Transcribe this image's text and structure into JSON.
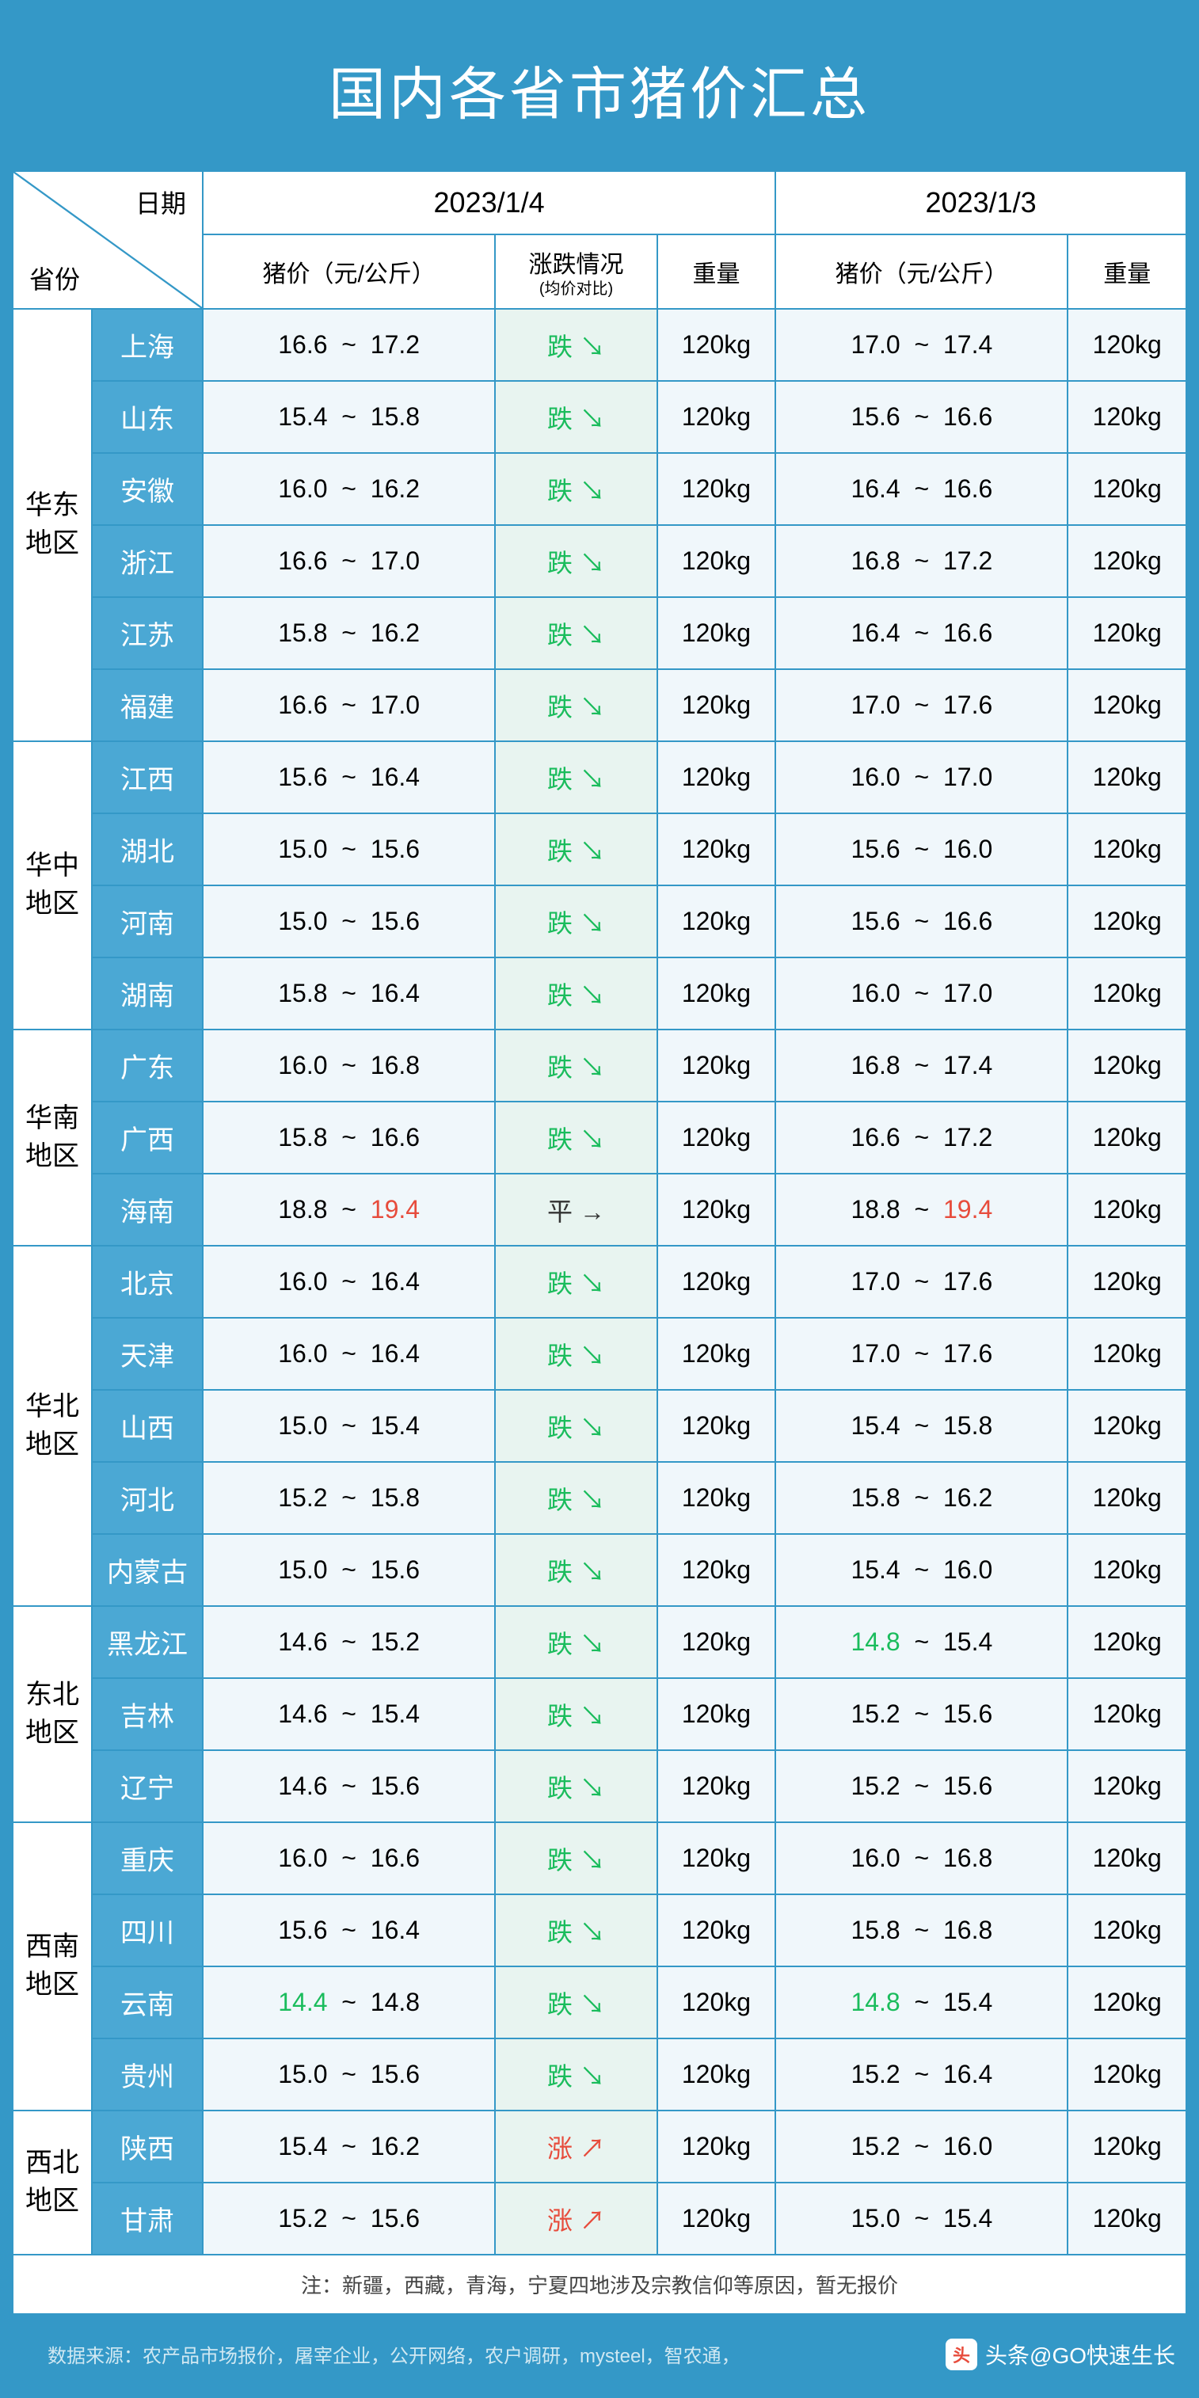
{
  "title": "国内各省市猪价汇总",
  "header": {
    "date_label": "日期",
    "province_label": "省份",
    "date1": "2023/1/4",
    "date2": "2023/1/3",
    "price_label": "猪价（元/公斤）",
    "trend_label": "涨跌情况",
    "trend_sub": "(均价对比)",
    "weight_label": "重量"
  },
  "colors": {
    "bg_main": "#3498c7",
    "province_bg": "#4ba8d4",
    "price_bg": "#f0f7fb",
    "trend_bg": "#e8f4f0",
    "down": "#1abc5c",
    "up": "#e74c3c",
    "red": "#e74c3c",
    "green": "#1abc5c"
  },
  "regions": [
    {
      "name": "华东地区",
      "provinces": [
        {
          "name": "上海",
          "p1l": "16.6",
          "p1h": "17.2",
          "trend": "down",
          "w1": "120kg",
          "p2l": "17.0",
          "p2h": "17.4",
          "w2": "120kg"
        },
        {
          "name": "山东",
          "p1l": "15.4",
          "p1h": "15.8",
          "trend": "down",
          "w1": "120kg",
          "p2l": "15.6",
          "p2h": "16.6",
          "w2": "120kg"
        },
        {
          "name": "安徽",
          "p1l": "16.0",
          "p1h": "16.2",
          "trend": "down",
          "w1": "120kg",
          "p2l": "16.4",
          "p2h": "16.6",
          "w2": "120kg"
        },
        {
          "name": "浙江",
          "p1l": "16.6",
          "p1h": "17.0",
          "trend": "down",
          "w1": "120kg",
          "p2l": "16.8",
          "p2h": "17.2",
          "w2": "120kg"
        },
        {
          "name": "江苏",
          "p1l": "15.8",
          "p1h": "16.2",
          "trend": "down",
          "w1": "120kg",
          "p2l": "16.4",
          "p2h": "16.6",
          "w2": "120kg"
        },
        {
          "name": "福建",
          "p1l": "16.6",
          "p1h": "17.0",
          "trend": "down",
          "w1": "120kg",
          "p2l": "17.0",
          "p2h": "17.6",
          "w2": "120kg"
        }
      ]
    },
    {
      "name": "华中地区",
      "provinces": [
        {
          "name": "江西",
          "p1l": "15.6",
          "p1h": "16.4",
          "trend": "down",
          "w1": "120kg",
          "p2l": "16.0",
          "p2h": "17.0",
          "w2": "120kg"
        },
        {
          "name": "湖北",
          "p1l": "15.0",
          "p1h": "15.6",
          "trend": "down",
          "w1": "120kg",
          "p2l": "15.6",
          "p2h": "16.0",
          "w2": "120kg"
        },
        {
          "name": "河南",
          "p1l": "15.0",
          "p1h": "15.6",
          "trend": "down",
          "w1": "120kg",
          "p2l": "15.6",
          "p2h": "16.6",
          "w2": "120kg"
        },
        {
          "name": "湖南",
          "p1l": "15.8",
          "p1h": "16.4",
          "trend": "down",
          "w1": "120kg",
          "p2l": "16.0",
          "p2h": "17.0",
          "w2": "120kg"
        }
      ]
    },
    {
      "name": "华南地区",
      "provinces": [
        {
          "name": "广东",
          "p1l": "16.0",
          "p1h": "16.8",
          "trend": "down",
          "w1": "120kg",
          "p2l": "16.8",
          "p2h": "17.4",
          "w2": "120kg"
        },
        {
          "name": "广西",
          "p1l": "15.8",
          "p1h": "16.6",
          "trend": "down",
          "w1": "120kg",
          "p2l": "16.6",
          "p2h": "17.2",
          "w2": "120kg"
        },
        {
          "name": "海南",
          "p1l": "18.8",
          "p1h": "19.4",
          "p1h_color": "red",
          "trend": "flat",
          "w1": "120kg",
          "p2l": "18.8",
          "p2h": "19.4",
          "p2h_color": "red",
          "w2": "120kg"
        }
      ]
    },
    {
      "name": "华北地区",
      "provinces": [
        {
          "name": "北京",
          "p1l": "16.0",
          "p1h": "16.4",
          "trend": "down",
          "w1": "120kg",
          "p2l": "17.0",
          "p2h": "17.6",
          "w2": "120kg"
        },
        {
          "name": "天津",
          "p1l": "16.0",
          "p1h": "16.4",
          "trend": "down",
          "w1": "120kg",
          "p2l": "17.0",
          "p2h": "17.6",
          "w2": "120kg"
        },
        {
          "name": "山西",
          "p1l": "15.0",
          "p1h": "15.4",
          "trend": "down",
          "w1": "120kg",
          "p2l": "15.4",
          "p2h": "15.8",
          "w2": "120kg"
        },
        {
          "name": "河北",
          "p1l": "15.2",
          "p1h": "15.8",
          "trend": "down",
          "w1": "120kg",
          "p2l": "15.8",
          "p2h": "16.2",
          "w2": "120kg"
        },
        {
          "name": "内蒙古",
          "p1l": "15.0",
          "p1h": "15.6",
          "trend": "down",
          "w1": "120kg",
          "p2l": "15.4",
          "p2h": "16.0",
          "w2": "120kg"
        }
      ]
    },
    {
      "name": "东北地区",
      "provinces": [
        {
          "name": "黑龙江",
          "p1l": "14.6",
          "p1h": "15.2",
          "trend": "down",
          "w1": "120kg",
          "p2l": "14.8",
          "p2l_color": "green",
          "p2h": "15.4",
          "w2": "120kg"
        },
        {
          "name": "吉林",
          "p1l": "14.6",
          "p1h": "15.4",
          "trend": "down",
          "w1": "120kg",
          "p2l": "15.2",
          "p2h": "15.6",
          "w2": "120kg"
        },
        {
          "name": "辽宁",
          "p1l": "14.6",
          "p1h": "15.6",
          "trend": "down",
          "w1": "120kg",
          "p2l": "15.2",
          "p2h": "15.6",
          "w2": "120kg"
        }
      ]
    },
    {
      "name": "西南地区",
      "provinces": [
        {
          "name": "重庆",
          "p1l": "16.0",
          "p1h": "16.6",
          "trend": "down",
          "w1": "120kg",
          "p2l": "16.0",
          "p2h": "16.8",
          "w2": "120kg"
        },
        {
          "name": "四川",
          "p1l": "15.6",
          "p1h": "16.4",
          "trend": "down",
          "w1": "120kg",
          "p2l": "15.8",
          "p2h": "16.8",
          "w2": "120kg"
        },
        {
          "name": "云南",
          "p1l": "14.4",
          "p1l_color": "green",
          "p1h": "14.8",
          "trend": "down",
          "w1": "120kg",
          "p2l": "14.8",
          "p2l_color": "green",
          "p2h": "15.4",
          "w2": "120kg"
        },
        {
          "name": "贵州",
          "p1l": "15.0",
          "p1h": "15.6",
          "trend": "down",
          "w1": "120kg",
          "p2l": "15.2",
          "p2h": "16.4",
          "w2": "120kg"
        }
      ]
    },
    {
      "name": "西北地区",
      "provinces": [
        {
          "name": "陕西",
          "p1l": "15.4",
          "p1h": "16.2",
          "trend": "up",
          "w1": "120kg",
          "p2l": "15.2",
          "p2h": "16.0",
          "w2": "120kg"
        },
        {
          "name": "甘肃",
          "p1l": "15.2",
          "p1h": "15.6",
          "trend": "up",
          "w1": "120kg",
          "p2l": "15.0",
          "p2h": "15.4",
          "w2": "120kg"
        }
      ]
    }
  ],
  "trend_text": {
    "down": "跌",
    "up": "涨",
    "flat": "平"
  },
  "trend_arrow": {
    "down": "↘",
    "up": "↗",
    "flat": "→"
  },
  "note": "注：新疆，西藏，青海，宁夏四地涉及宗教信仰等原因，暂无报价",
  "source": "数据来源：农产品市场报价，屠宰企业，公开网络，农户调研，mysteel，智农通，",
  "watermark_prefix": "头条",
  "watermark": "@GO快速生长"
}
